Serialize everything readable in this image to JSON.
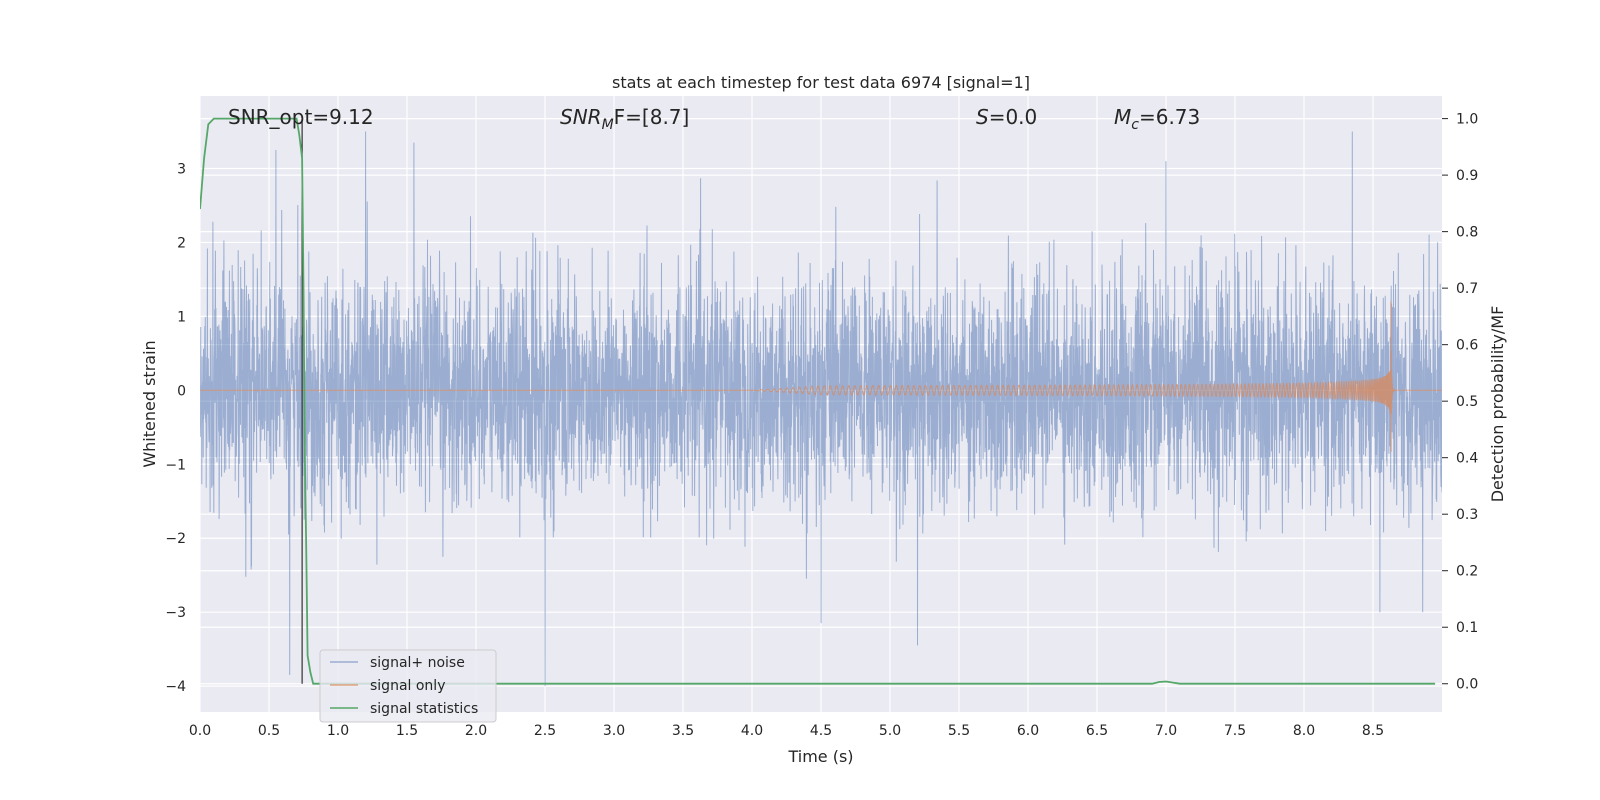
{
  "chart_data": {
    "type": "line",
    "title": "stats at each timestep for test data 6974 [signal=1]",
    "xlabel": "Time (s)",
    "ylabel": "Whitened strain",
    "y2label": "Detection probability/MF",
    "xlim": [
      0.0,
      9.0
    ],
    "ylim": [
      -4.35,
      3.98
    ],
    "y2lim": [
      -0.05,
      1.04
    ],
    "xticks": [
      0.0,
      0.5,
      1.0,
      1.5,
      2.0,
      2.5,
      3.0,
      3.5,
      4.0,
      4.5,
      5.0,
      5.5,
      6.0,
      6.5,
      7.0,
      7.5,
      8.0,
      8.5
    ],
    "xtick_labels": [
      "0.0",
      "0.5",
      "1.0",
      "1.5",
      "2.0",
      "2.5",
      "3.0",
      "3.5",
      "4.0",
      "4.5",
      "5.0",
      "5.5",
      "6.0",
      "6.5",
      "7.0",
      "7.5",
      "8.0",
      "8.5"
    ],
    "yticks": [
      3,
      2,
      1,
      0,
      -1,
      -2,
      -3,
      -4
    ],
    "ytick_labels": [
      "3",
      "2",
      "1",
      "0",
      "−1",
      "−2",
      "−3",
      "−4"
    ],
    "y2ticks": [
      1.0,
      0.9,
      0.8,
      0.7,
      0.6,
      0.5,
      0.4,
      0.3,
      0.2,
      0.1,
      0.0
    ],
    "y2tick_labels": [
      "1.0",
      "0.9",
      "0.8",
      "0.7",
      "0.6",
      "0.5",
      "0.4",
      "0.3",
      "0.2",
      "0.1",
      "0.0"
    ],
    "grid": true,
    "legend_position": "lower-left",
    "annotations": {
      "snr_opt": "SNR_opt=9.12",
      "snr_mf_symbol": "SNR",
      "snr_mf_sub": "M",
      "snr_mf_rest": "F=[8.7]",
      "s_symbol": "S",
      "s_rest": "=0.0",
      "mc_symbol": "M",
      "mc_sub": "c",
      "mc_rest": "=6.73"
    },
    "vertical_marker_x": 0.74,
    "series": [
      {
        "name": "signal+ noise",
        "color": "#4c72b0",
        "opacity": 0.5,
        "axis": "left",
        "style": "dense-noise",
        "envelope_sigma": 0.75,
        "notable_peaks": [
          [
            0.55,
            3.25
          ],
          [
            1.2,
            3.5
          ],
          [
            1.55,
            3.35
          ],
          [
            2.5,
            -4.0
          ],
          [
            4.5,
            -3.15
          ],
          [
            5.2,
            -3.45
          ],
          [
            7.0,
            3.1
          ],
          [
            8.35,
            3.5
          ],
          [
            8.55,
            -3.0
          ],
          [
            8.86,
            -3.0
          ],
          [
            0.65,
            -3.85
          ]
        ]
      },
      {
        "name": "signal only",
        "color": "#dd8452",
        "opacity": 0.7,
        "axis": "left",
        "style": "chirp",
        "chirp_start": 4.0,
        "chirp_merger": 8.63,
        "amplitude_at_6": 0.07,
        "amplitude_at_8": 0.2,
        "peak_amplitude": 1.2
      },
      {
        "name": "signal statistics",
        "color": "#55a868",
        "axis": "right",
        "x": [
          0.0,
          0.03,
          0.06,
          0.1,
          0.15,
          0.2,
          0.3,
          0.4,
          0.5,
          0.55,
          0.6,
          0.65,
          0.7,
          0.72,
          0.74,
          0.75,
          0.76,
          0.77,
          0.78,
          0.8,
          0.82,
          0.85,
          0.9,
          1.0,
          2.0,
          3.0,
          4.0,
          5.0,
          6.0,
          6.9,
          6.95,
          7.0,
          7.05,
          7.1,
          7.5,
          8.0,
          8.5,
          8.95
        ],
        "y": [
          0.84,
          0.93,
          0.99,
          1.0,
          1.0,
          1.0,
          1.0,
          1.0,
          1.0,
          1.0,
          1.0,
          1.0,
          1.0,
          0.97,
          0.93,
          0.7,
          0.4,
          0.23,
          0.05,
          0.02,
          0.0,
          0.0,
          0.0,
          0.0,
          0.0,
          0.0,
          0.0,
          0.0,
          0.0,
          0.0,
          0.003,
          0.004,
          0.002,
          0.0,
          0.0,
          0.0,
          0.0,
          0.0
        ]
      }
    ]
  }
}
